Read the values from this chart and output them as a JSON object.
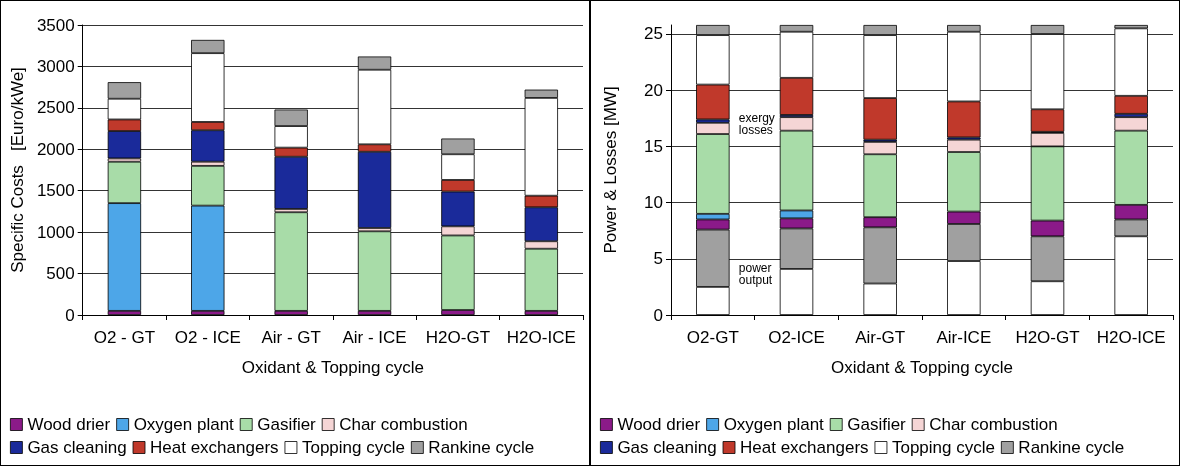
{
  "chart_data": [
    {
      "type": "bar",
      "stacked": true,
      "xlabel": "Oxidant & Topping cycle",
      "ylabel": "Specific Costs   [Euro/kWe]",
      "categories": [
        "O2 - GT",
        "O2 - ICE",
        "Air - GT",
        "Air - ICE",
        "H2O-GT",
        "H2O-ICE"
      ],
      "ylim": [
        0,
        3500
      ],
      "yticks": [
        0,
        500,
        1000,
        1500,
        2000,
        2500,
        3000,
        3500
      ],
      "grid": "y",
      "legend": "bottom",
      "series": [
        {
          "name": "Wood drier",
          "color": "#8b1a89",
          "values": [
            50,
            50,
            50,
            50,
            60,
            50
          ]
        },
        {
          "name": "Oxygen plant",
          "color": "#4da6e8",
          "values": [
            1300,
            1270,
            null,
            null,
            null,
            null
          ]
        },
        {
          "name": "Gasifier",
          "color": "#a8dca8",
          "values": [
            500,
            480,
            1190,
            960,
            900,
            750
          ]
        },
        {
          "name": "Char combustion",
          "color": "#f5d5d5",
          "values": [
            40,
            50,
            40,
            40,
            110,
            90
          ]
        },
        {
          "name": "Gas cleaning",
          "color": "#1a2a9a",
          "values": [
            330,
            380,
            630,
            920,
            420,
            410
          ]
        },
        {
          "name": "Heat exchangers",
          "color": "#c0392b",
          "values": [
            140,
            100,
            110,
            90,
            140,
            140
          ]
        },
        {
          "name": "Topping cycle",
          "color": "#ffffff",
          "values": [
            250,
            830,
            260,
            900,
            310,
            1180
          ]
        },
        {
          "name": "Rankine cycle",
          "color": "#a0a0a0",
          "values": [
            200,
            160,
            200,
            160,
            190,
            100
          ]
        }
      ]
    },
    {
      "type": "bar",
      "stacked": true,
      "xlabel": "Oxidant & Topping cycle",
      "ylabel": "Power & Losses [MW]",
      "categories": [
        "O2-GT",
        "O2-ICE",
        "Air-GT",
        "Air-ICE",
        "H2O-GT",
        "H2O-ICE"
      ],
      "ylim": [
        0,
        25.8
      ],
      "yticks": [
        0,
        5,
        10,
        15,
        20,
        25
      ],
      "grid": "y",
      "legend": "bottom",
      "annotations": [
        "exergy losses",
        "power output"
      ],
      "series": [
        {
          "color": "#ffffff",
          "values": [
            2.5,
            4.1,
            2.8,
            4.8,
            3.0,
            7.0
          ]
        },
        {
          "color": "#a0a0a0",
          "values": [
            5.1,
            3.6,
            5.0,
            3.3,
            4.0,
            1.5
          ]
        },
        {
          "name": "Wood drier",
          "color": "#8b1a89",
          "values": [
            0.9,
            0.9,
            0.9,
            1.1,
            1.4,
            1.3
          ]
        },
        {
          "name": "Oxygen plant",
          "color": "#4da6e8",
          "values": [
            0.5,
            0.7,
            null,
            null,
            null,
            null
          ]
        },
        {
          "name": "Gasifier",
          "color": "#a8dca8",
          "values": [
            7.1,
            7.1,
            5.6,
            5.3,
            6.6,
            6.6
          ]
        },
        {
          "name": "Char combustion",
          "color": "#f5d5d5",
          "values": [
            1.0,
            1.2,
            1.1,
            1.1,
            1.2,
            1.2
          ]
        },
        {
          "name": "Gas cleaning",
          "color": "#1a2a9a",
          "values": [
            0.3,
            0.2,
            0.2,
            0.2,
            0.1,
            0.3
          ]
        },
        {
          "name": "Heat exchangers",
          "color": "#c0392b",
          "values": [
            3.1,
            3.3,
            3.7,
            3.2,
            2.0,
            1.6
          ]
        },
        {
          "name": "Topping cycle",
          "color": "#ffffff",
          "values": [
            4.4,
            4.1,
            5.6,
            6.2,
            6.7,
            6.0
          ]
        },
        {
          "name": "Rankine cycle",
          "color": "#a0a0a0",
          "values": [
            0.9,
            0.6,
            0.9,
            0.6,
            0.8,
            0.3
          ]
        }
      ]
    }
  ]
}
